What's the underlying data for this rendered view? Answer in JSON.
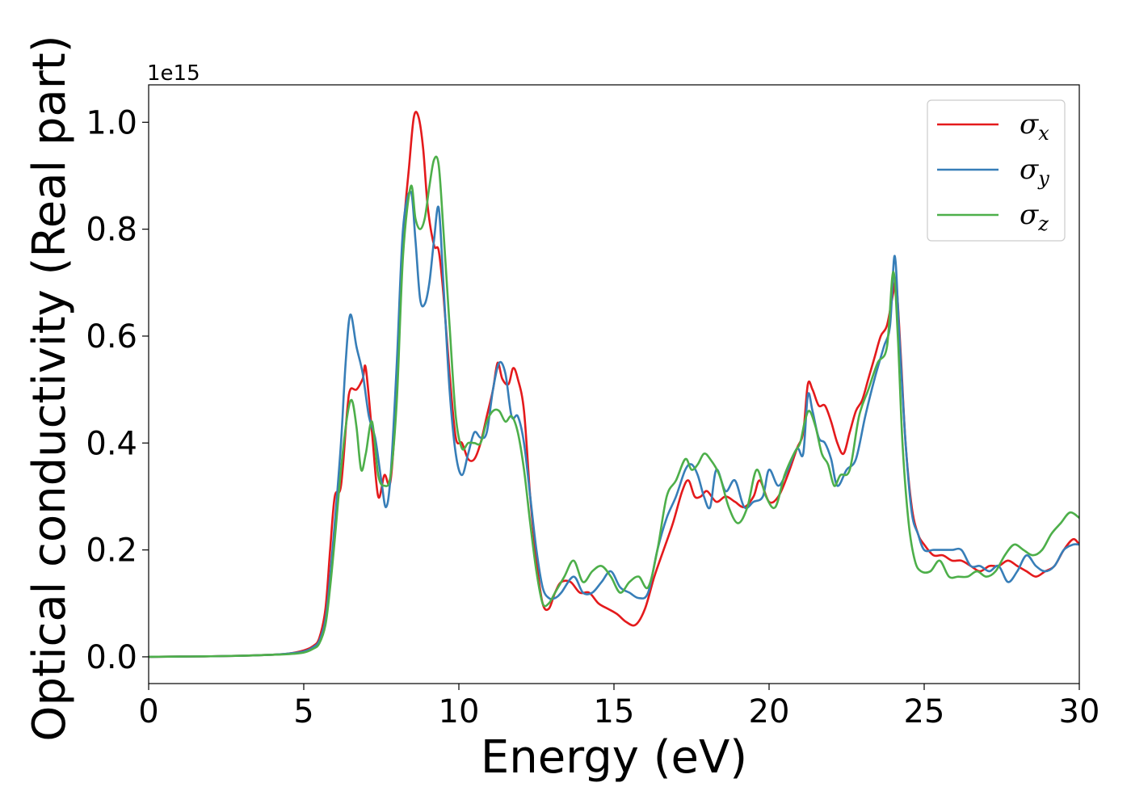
{
  "chart_data": {
    "type": "line",
    "title": "",
    "xlabel": "Energy (eV)",
    "ylabel": "Optical conductivity (Real part)",
    "y_offset_label": "1e15",
    "xlim": [
      0,
      30
    ],
    "ylim": [
      -0.05,
      1.07
    ],
    "xticks": [
      0,
      5,
      10,
      15,
      20,
      25,
      30
    ],
    "yticks": [
      0.0,
      0.2,
      0.4,
      0.6,
      0.8,
      1.0
    ],
    "xtick_labels": [
      "0",
      "5",
      "10",
      "15",
      "20",
      "25",
      "30"
    ],
    "ytick_labels": [
      "0.0",
      "0.2",
      "0.4",
      "0.6",
      "0.8",
      "1.0"
    ],
    "grid": false,
    "legend_position": "top-right",
    "series": [
      {
        "name": "σx",
        "symbol": "σ",
        "subscript": "x",
        "color": "#e41a1c",
        "x": [
          0,
          1,
          2,
          3,
          4,
          4.5,
          5,
          5.3,
          5.5,
          5.7,
          5.85,
          6.0,
          6.2,
          6.4,
          6.5,
          6.7,
          6.9,
          7.0,
          7.2,
          7.4,
          7.6,
          7.8,
          8.0,
          8.2,
          8.4,
          8.55,
          8.7,
          8.85,
          9.0,
          9.2,
          9.35,
          9.5,
          9.7,
          9.9,
          10.1,
          10.3,
          10.5,
          10.7,
          10.9,
          11.1,
          11.25,
          11.4,
          11.6,
          11.75,
          11.9,
          12.1,
          12.3,
          12.5,
          12.7,
          12.9,
          13.1,
          13.3,
          13.6,
          13.9,
          14.2,
          14.5,
          14.8,
          15.1,
          15.4,
          15.7,
          16.0,
          16.3,
          16.6,
          16.9,
          17.2,
          17.4,
          17.6,
          17.8,
          18.0,
          18.3,
          18.6,
          18.9,
          19.2,
          19.5,
          19.7,
          20.0,
          20.3,
          20.6,
          20.9,
          21.1,
          21.25,
          21.4,
          21.6,
          21.8,
          22.0,
          22.2,
          22.4,
          22.6,
          22.8,
          23.0,
          23.2,
          23.4,
          23.6,
          23.8,
          24.0,
          24.1,
          24.25,
          24.4,
          24.6,
          24.8,
          25.0,
          25.3,
          25.6,
          25.9,
          26.2,
          26.5,
          26.8,
          27.1,
          27.4,
          27.7,
          28.0,
          28.3,
          28.6,
          28.9,
          29.2,
          29.5,
          29.8,
          30.0
        ],
        "y": [
          0,
          0.0005,
          0.001,
          0.002,
          0.004,
          0.006,
          0.012,
          0.02,
          0.035,
          0.09,
          0.2,
          0.3,
          0.32,
          0.46,
          0.5,
          0.5,
          0.52,
          0.54,
          0.42,
          0.3,
          0.34,
          0.33,
          0.5,
          0.78,
          0.92,
          1.01,
          1.01,
          0.95,
          0.84,
          0.77,
          0.76,
          0.68,
          0.53,
          0.41,
          0.4,
          0.37,
          0.37,
          0.4,
          0.45,
          0.5,
          0.55,
          0.52,
          0.51,
          0.54,
          0.52,
          0.46,
          0.3,
          0.18,
          0.1,
          0.09,
          0.12,
          0.14,
          0.14,
          0.12,
          0.12,
          0.1,
          0.09,
          0.08,
          0.065,
          0.06,
          0.09,
          0.15,
          0.2,
          0.25,
          0.31,
          0.33,
          0.3,
          0.3,
          0.31,
          0.29,
          0.3,
          0.29,
          0.28,
          0.3,
          0.33,
          0.29,
          0.3,
          0.34,
          0.39,
          0.42,
          0.51,
          0.5,
          0.47,
          0.47,
          0.44,
          0.4,
          0.38,
          0.42,
          0.46,
          0.48,
          0.52,
          0.56,
          0.6,
          0.62,
          0.68,
          0.7,
          0.56,
          0.4,
          0.28,
          0.23,
          0.21,
          0.19,
          0.19,
          0.18,
          0.18,
          0.17,
          0.16,
          0.17,
          0.17,
          0.18,
          0.17,
          0.16,
          0.15,
          0.16,
          0.17,
          0.2,
          0.22,
          0.21
        ],
        "points": []
      },
      {
        "name": "σy",
        "symbol": "σ",
        "subscript": "y",
        "color": "#377eb8",
        "x": [
          0,
          1,
          2,
          3,
          4,
          4.5,
          5,
          5.3,
          5.5,
          5.7,
          5.85,
          6.0,
          6.2,
          6.35,
          6.5,
          6.7,
          6.9,
          7.1,
          7.3,
          7.5,
          7.65,
          7.8,
          8.0,
          8.2,
          8.45,
          8.6,
          8.75,
          8.9,
          9.05,
          9.2,
          9.35,
          9.5,
          9.7,
          9.9,
          10.1,
          10.3,
          10.5,
          10.7,
          10.9,
          11.1,
          11.3,
          11.5,
          11.7,
          11.9,
          12.1,
          12.3,
          12.5,
          12.7,
          12.9,
          13.1,
          13.3,
          13.7,
          14.0,
          14.3,
          14.6,
          14.9,
          15.2,
          15.5,
          15.8,
          16.1,
          16.4,
          16.7,
          17.0,
          17.3,
          17.5,
          17.7,
          17.9,
          18.1,
          18.3,
          18.6,
          18.9,
          19.2,
          19.5,
          19.8,
          20.0,
          20.3,
          20.6,
          20.9,
          21.1,
          21.25,
          21.4,
          21.6,
          21.8,
          22.0,
          22.2,
          22.5,
          22.8,
          23.1,
          23.4,
          23.7,
          23.9,
          24.05,
          24.2,
          24.4,
          24.6,
          24.8,
          25.0,
          25.3,
          25.6,
          25.9,
          26.2,
          26.5,
          26.8,
          27.1,
          27.4,
          27.7,
          28.0,
          28.3,
          28.6,
          28.9,
          29.2,
          29.5,
          29.8,
          30.0
        ],
        "y": [
          0,
          0.0005,
          0.001,
          0.002,
          0.004,
          0.006,
          0.01,
          0.018,
          0.03,
          0.07,
          0.15,
          0.25,
          0.4,
          0.55,
          0.64,
          0.58,
          0.53,
          0.45,
          0.41,
          0.33,
          0.28,
          0.34,
          0.55,
          0.8,
          0.87,
          0.78,
          0.67,
          0.66,
          0.7,
          0.78,
          0.84,
          0.7,
          0.5,
          0.38,
          0.34,
          0.38,
          0.42,
          0.41,
          0.42,
          0.5,
          0.55,
          0.53,
          0.45,
          0.45,
          0.4,
          0.3,
          0.2,
          0.13,
          0.11,
          0.11,
          0.12,
          0.15,
          0.12,
          0.12,
          0.14,
          0.16,
          0.13,
          0.12,
          0.11,
          0.12,
          0.2,
          0.26,
          0.3,
          0.35,
          0.36,
          0.34,
          0.3,
          0.28,
          0.35,
          0.31,
          0.33,
          0.28,
          0.29,
          0.3,
          0.35,
          0.32,
          0.35,
          0.39,
          0.38,
          0.49,
          0.46,
          0.41,
          0.4,
          0.37,
          0.32,
          0.35,
          0.37,
          0.45,
          0.52,
          0.58,
          0.62,
          0.75,
          0.6,
          0.4,
          0.27,
          0.23,
          0.2,
          0.2,
          0.2,
          0.2,
          0.2,
          0.17,
          0.17,
          0.16,
          0.17,
          0.14,
          0.16,
          0.19,
          0.17,
          0.16,
          0.17,
          0.2,
          0.21,
          0.21
        ],
        "points": []
      },
      {
        "name": "σz",
        "symbol": "σ",
        "subscript": "z",
        "color": "#4daf4a",
        "x": [
          0,
          1,
          2,
          3,
          4,
          4.5,
          5,
          5.3,
          5.5,
          5.7,
          5.85,
          6.0,
          6.2,
          6.4,
          6.55,
          6.7,
          6.85,
          7.0,
          7.2,
          7.4,
          7.6,
          7.8,
          8.0,
          8.2,
          8.45,
          8.6,
          8.75,
          8.9,
          9.05,
          9.2,
          9.35,
          9.5,
          9.7,
          9.9,
          10.1,
          10.3,
          10.5,
          10.7,
          10.9,
          11.1,
          11.3,
          11.5,
          11.7,
          11.9,
          12.1,
          12.3,
          12.5,
          12.7,
          12.9,
          13.1,
          13.4,
          13.7,
          14.0,
          14.3,
          14.6,
          14.9,
          15.2,
          15.5,
          15.8,
          16.1,
          16.4,
          16.7,
          17.0,
          17.3,
          17.5,
          17.7,
          17.9,
          18.1,
          18.4,
          18.7,
          19.0,
          19.3,
          19.6,
          19.9,
          20.2,
          20.5,
          20.8,
          21.0,
          21.15,
          21.3,
          21.5,
          21.7,
          21.9,
          22.1,
          22.3,
          22.6,
          22.9,
          23.2,
          23.5,
          23.8,
          24.0,
          24.15,
          24.3,
          24.5,
          24.7,
          24.9,
          25.2,
          25.5,
          25.8,
          26.1,
          26.4,
          26.7,
          27.0,
          27.3,
          27.6,
          27.9,
          28.2,
          28.5,
          28.8,
          29.1,
          29.4,
          29.7,
          30.0
        ],
        "y": [
          0,
          0.0005,
          0.001,
          0.002,
          0.004,
          0.005,
          0.008,
          0.015,
          0.025,
          0.06,
          0.13,
          0.22,
          0.35,
          0.45,
          0.48,
          0.43,
          0.35,
          0.38,
          0.44,
          0.34,
          0.32,
          0.34,
          0.48,
          0.75,
          0.88,
          0.82,
          0.8,
          0.82,
          0.88,
          0.93,
          0.92,
          0.8,
          0.62,
          0.45,
          0.39,
          0.4,
          0.4,
          0.4,
          0.44,
          0.46,
          0.46,
          0.44,
          0.45,
          0.42,
          0.35,
          0.25,
          0.16,
          0.1,
          0.1,
          0.12,
          0.15,
          0.18,
          0.14,
          0.16,
          0.17,
          0.15,
          0.12,
          0.14,
          0.15,
          0.13,
          0.2,
          0.3,
          0.33,
          0.37,
          0.35,
          0.36,
          0.38,
          0.37,
          0.34,
          0.28,
          0.25,
          0.28,
          0.35,
          0.3,
          0.28,
          0.34,
          0.38,
          0.4,
          0.44,
          0.46,
          0.43,
          0.38,
          0.36,
          0.32,
          0.34,
          0.35,
          0.45,
          0.5,
          0.55,
          0.58,
          0.72,
          0.6,
          0.4,
          0.25,
          0.18,
          0.16,
          0.16,
          0.18,
          0.15,
          0.15,
          0.15,
          0.16,
          0.15,
          0.16,
          0.19,
          0.21,
          0.2,
          0.19,
          0.2,
          0.23,
          0.25,
          0.27,
          0.26
        ],
        "points": []
      }
    ]
  }
}
